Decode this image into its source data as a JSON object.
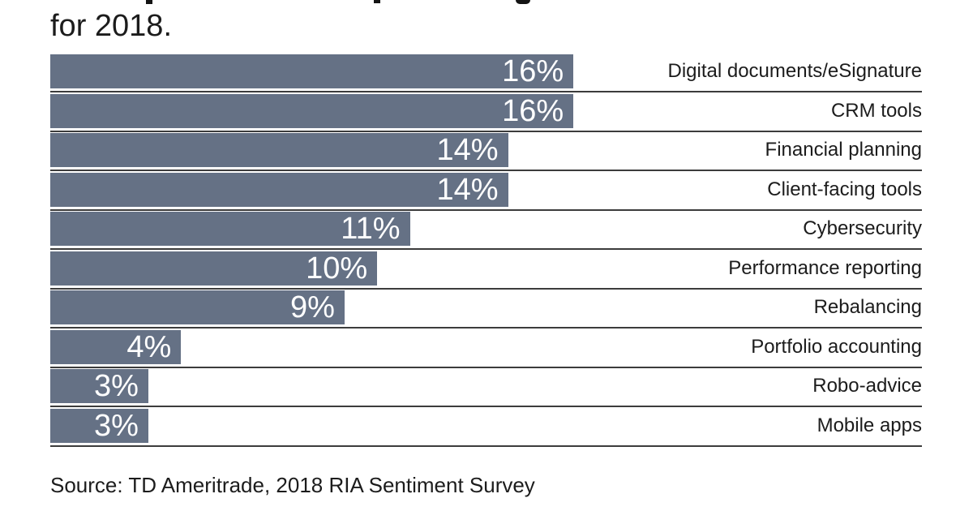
{
  "header": {
    "visible_title_line": "for 2018.",
    "clipped_previous_line": true
  },
  "chart_data": {
    "type": "bar",
    "orientation": "horizontal",
    "categories": [
      "Digital documents/eSignature",
      "CRM tools",
      "Financial planning",
      "Client-facing tools",
      "Cybersecurity",
      "Performance reporting",
      "Rebalancing",
      "Portfolio accounting",
      "Robo-advice",
      "Mobile apps"
    ],
    "values": [
      16,
      16,
      14,
      14,
      11,
      10,
      9,
      4,
      3,
      3
    ],
    "value_labels": [
      "16%",
      "16%",
      "14%",
      "14%",
      "11%",
      "10%",
      "9%",
      "4%",
      "3%",
      "3%"
    ],
    "unit": "%",
    "xlim": [
      0,
      26.66
    ],
    "grid": false,
    "legend": "none",
    "value_labels_position": "inside-bar-right",
    "category_labels_position": "right-aligned-outside",
    "bar_color": "#657185",
    "value_label_color": "#ffffff",
    "category_label_color": "#1c1c1c",
    "separator_color": "#3c3c3c",
    "title": "for 2018.",
    "source": "Source: TD Ameritrade, 2018 RIA Sentiment Survey"
  },
  "footer": {
    "source": "Source: TD Ameritrade, 2018 RIA Sentiment Survey"
  }
}
